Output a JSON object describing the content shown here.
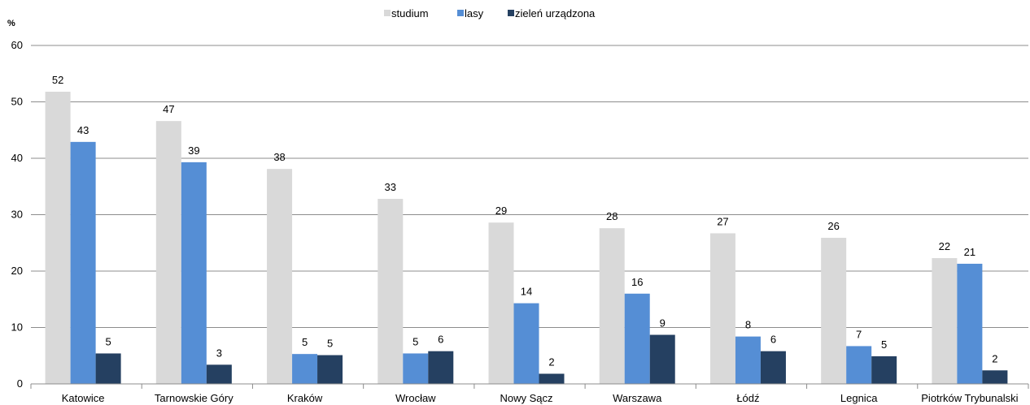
{
  "chart_data": {
    "type": "bar",
    "ylabel": "%",
    "ylim": [
      0,
      60
    ],
    "yticks": [
      0,
      10,
      20,
      30,
      40,
      50,
      60
    ],
    "grid": true,
    "legend_position": "top-center",
    "categories": [
      "Katowice",
      "Tarnowskie Góry",
      "Kraków",
      "Wrocław",
      "Nowy Sącz",
      "Warszawa",
      "Łódź",
      "Legnica",
      "Piotrków Trybunalski"
    ],
    "series": [
      {
        "name": "studium",
        "color": "#d9d9d9",
        "values": [
          51.8,
          46.6,
          38.1,
          32.8,
          28.6,
          27.6,
          26.7,
          25.9,
          22.3
        ]
      },
      {
        "name": "lasy",
        "color": "#558ed5",
        "values": [
          42.9,
          39.3,
          5.3,
          5.4,
          14.3,
          16.0,
          8.4,
          6.7,
          21.3
        ]
      },
      {
        "name": "zieleń urządzona",
        "color": "#254061",
        "values": [
          5.4,
          3.4,
          5.1,
          5.8,
          1.8,
          8.7,
          5.8,
          4.9,
          2.4
        ]
      }
    ],
    "data_labels": [
      [
        "52",
        "47",
        "38",
        "33",
        "29",
        "28",
        "27",
        "26",
        "22"
      ],
      [
        "43",
        "39",
        "5",
        "5",
        "14",
        "16",
        "8",
        "7",
        "21"
      ],
      [
        "5",
        "3",
        "5",
        "6",
        "2",
        "9",
        "6",
        "5",
        "2"
      ]
    ]
  }
}
